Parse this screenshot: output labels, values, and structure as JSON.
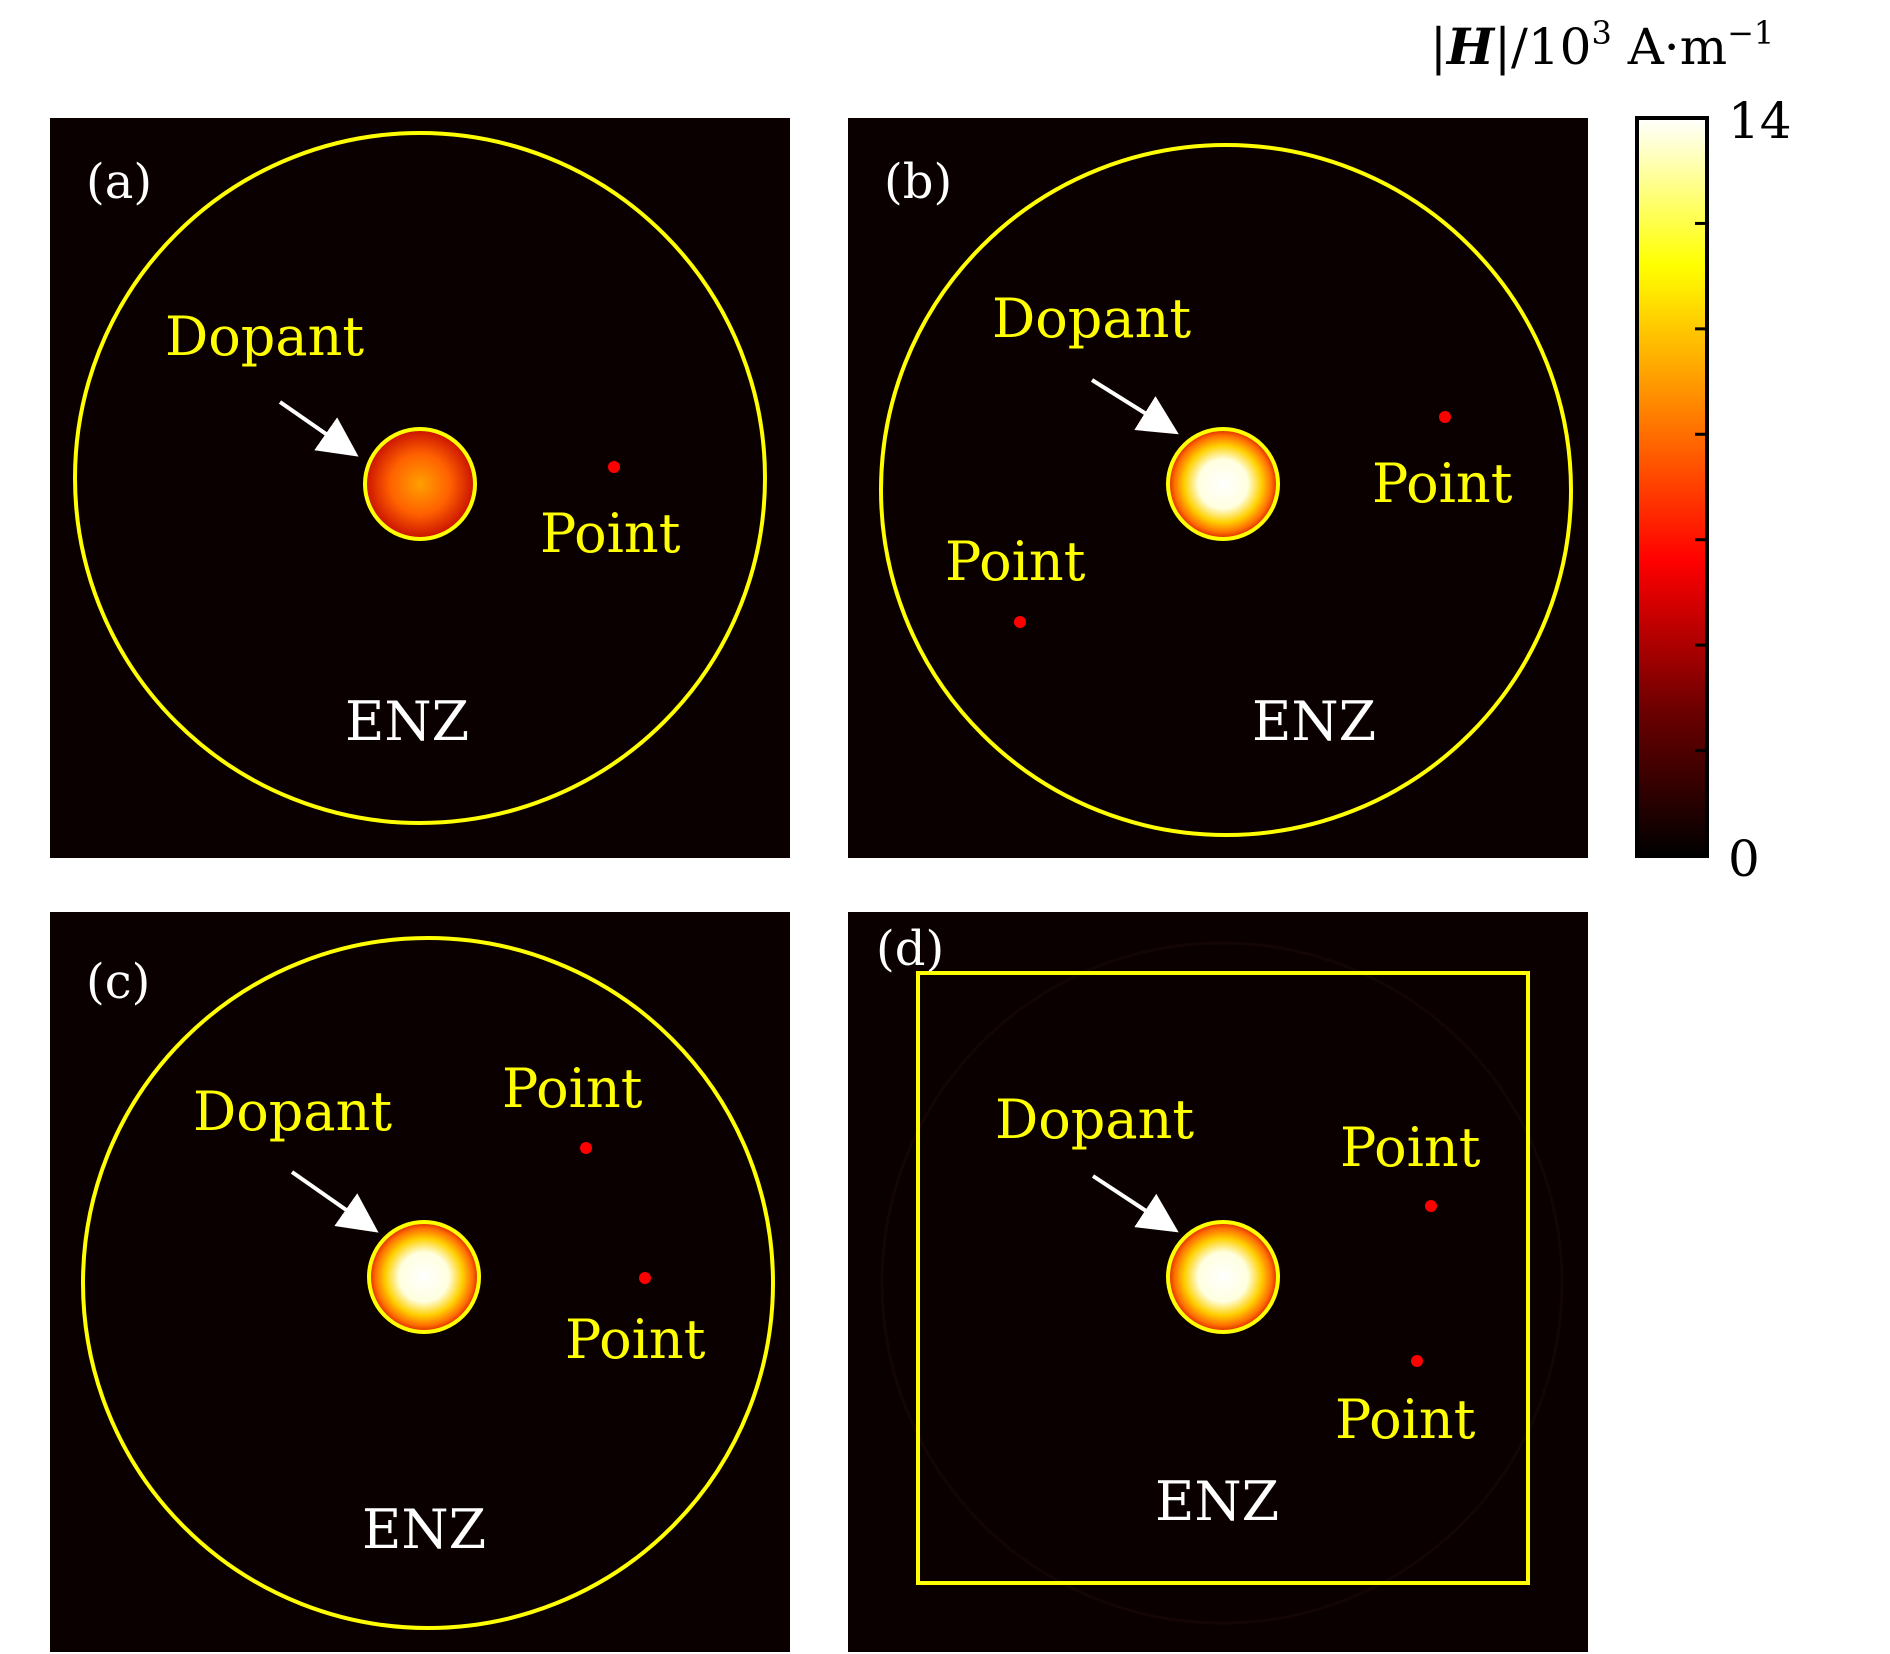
{
  "colorbar": {
    "title_symbol": "H",
    "title_rest": "/10",
    "title_exp": "3",
    "title_unit": " A·m",
    "title_unit_exp": "−1",
    "max_label": "14",
    "min_label": "0",
    "range": [
      0,
      14
    ],
    "colormap": "hot",
    "colormap_stops": [
      "#000000",
      "#6e0000",
      "#ff0000",
      "#ff8000",
      "#ffff00",
      "#ffffff"
    ]
  },
  "panels": [
    {
      "label": "(a)",
      "boundary": "circle",
      "dopant_label": "Dopant",
      "enz_label": "ENZ",
      "dopant_field_level": 0.45,
      "points": [
        {
          "label": "Point"
        }
      ]
    },
    {
      "label": "(b)",
      "boundary": "circle",
      "dopant_label": "Dopant",
      "enz_label": "ENZ",
      "dopant_field_level": 1.0,
      "points": [
        {
          "label": "Point"
        },
        {
          "label": "Point"
        }
      ]
    },
    {
      "label": "(c)",
      "boundary": "circle",
      "dopant_label": "Dopant",
      "enz_label": "ENZ",
      "dopant_field_level": 1.0,
      "points": [
        {
          "label": "Point"
        },
        {
          "label": "Point"
        }
      ]
    },
    {
      "label": "(d)",
      "boundary": "square",
      "dopant_label": "Dopant",
      "enz_label": "ENZ",
      "dopant_field_level": 1.0,
      "points": [
        {
          "label": "Point"
        },
        {
          "label": "Point"
        }
      ]
    }
  ],
  "colors": {
    "background": "#0a0000",
    "boundary": "#ffff00",
    "label_text": "#ffff00",
    "enz_text": "#ffffff",
    "panel_label_text": "#ffffff",
    "point_dot": "#ff0000",
    "arrow": "#ffffff"
  }
}
